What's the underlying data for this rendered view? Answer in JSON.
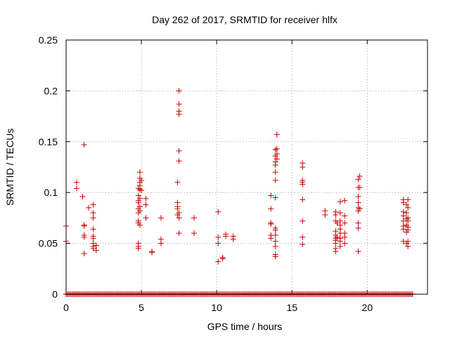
{
  "chart_data": {
    "type": "scatter",
    "title": "Day 262 of 2017, SRMTID for receiver hlfx",
    "xlabel": "GPS time / hours",
    "ylabel": "SRMTID / TECUs",
    "xlim": [
      0,
      24
    ],
    "ylim": [
      0,
      0.25
    ],
    "xticks": [
      0,
      5,
      10,
      15,
      20
    ],
    "xtick_labels": [
      "0",
      "5",
      "10",
      "15",
      "20"
    ],
    "yticks": [
      0,
      0.05,
      0.1,
      0.15,
      0.2,
      0.25
    ],
    "ytick_labels": [
      "0",
      "0.05",
      "0.1",
      "0.15",
      "0.2",
      "0.25"
    ],
    "grid": true,
    "marker": "plus",
    "marker_color": "#cc0000",
    "series": [
      {
        "name": "",
        "points": [
          [
            0.0,
            0.067
          ],
          [
            0.0,
            0.052
          ],
          [
            0.7,
            0.11
          ],
          [
            0.7,
            0.104
          ],
          [
            1.1,
            0.096
          ],
          [
            1.2,
            0.147
          ],
          [
            1.2,
            0.068
          ],
          [
            1.2,
            0.067
          ],
          [
            1.2,
            0.058
          ],
          [
            1.2,
            0.056
          ],
          [
            1.2,
            0.04
          ],
          [
            1.5,
            0.085
          ],
          [
            1.8,
            0.088
          ],
          [
            1.8,
            0.08
          ],
          [
            1.8,
            0.075
          ],
          [
            1.8,
            0.064
          ],
          [
            1.8,
            0.057
          ],
          [
            1.8,
            0.055
          ],
          [
            1.8,
            0.05
          ],
          [
            1.8,
            0.047
          ],
          [
            1.8,
            0.045
          ],
          [
            2.0,
            0.048
          ],
          [
            2.0,
            0.043
          ],
          [
            4.8,
            0.104
          ],
          [
            4.8,
            0.097
          ],
          [
            4.8,
            0.092
          ],
          [
            4.8,
            0.09
          ],
          [
            4.8,
            0.084
          ],
          [
            4.8,
            0.08
          ],
          [
            4.8,
            0.072
          ],
          [
            4.8,
            0.07
          ],
          [
            4.8,
            0.05
          ],
          [
            4.8,
            0.047
          ],
          [
            4.8,
            0.045
          ],
          [
            4.9,
            0.12
          ],
          [
            4.9,
            0.114
          ],
          [
            4.9,
            0.11
          ],
          [
            4.9,
            0.107
          ],
          [
            4.9,
            0.103
          ],
          [
            4.9,
            0.094
          ],
          [
            4.9,
            0.086
          ],
          [
            4.9,
            0.082
          ],
          [
            4.9,
            0.068
          ],
          [
            5.0,
            0.112
          ],
          [
            5.0,
            0.102
          ],
          [
            5.3,
            0.094
          ],
          [
            5.3,
            0.088
          ],
          [
            5.3,
            0.075
          ],
          [
            5.7,
            0.042
          ],
          [
            5.7,
            0.041
          ],
          [
            6.3,
            0.075
          ],
          [
            6.3,
            0.054
          ],
          [
            6.3,
            0.05
          ],
          [
            7.4,
            0.11
          ],
          [
            7.4,
            0.09
          ],
          [
            7.4,
            0.086
          ],
          [
            7.4,
            0.084
          ],
          [
            7.4,
            0.078
          ],
          [
            7.5,
            0.2
          ],
          [
            7.5,
            0.187
          ],
          [
            7.5,
            0.18
          ],
          [
            7.5,
            0.177
          ],
          [
            7.5,
            0.141
          ],
          [
            7.5,
            0.131
          ],
          [
            7.5,
            0.08
          ],
          [
            7.5,
            0.075
          ],
          [
            7.5,
            0.06
          ],
          [
            8.5,
            0.075
          ],
          [
            8.5,
            0.06
          ],
          [
            10.1,
            0.081
          ],
          [
            10.1,
            0.056
          ],
          [
            10.1,
            0.05
          ],
          [
            10.1,
            0.032
          ],
          [
            10.4,
            0.036
          ],
          [
            10.4,
            0.035
          ],
          [
            10.6,
            0.059
          ],
          [
            10.6,
            0.057
          ],
          [
            11.1,
            0.057
          ],
          [
            11.1,
            0.054
          ],
          [
            13.6,
            0.097
          ],
          [
            13.6,
            0.084
          ],
          [
            13.6,
            0.07
          ],
          [
            13.6,
            0.069
          ],
          [
            13.6,
            0.058
          ],
          [
            13.6,
            0.055
          ],
          [
            13.9,
            0.142
          ],
          [
            13.9,
            0.136
          ],
          [
            13.9,
            0.13
          ],
          [
            13.9,
            0.127
          ],
          [
            13.9,
            0.12
          ],
          [
            13.9,
            0.112
          ],
          [
            13.9,
            0.095
          ],
          [
            13.9,
            0.065
          ],
          [
            13.9,
            0.063
          ],
          [
            13.9,
            0.058
          ],
          [
            13.9,
            0.052
          ],
          [
            13.9,
            0.047
          ],
          [
            13.9,
            0.039
          ],
          [
            13.9,
            0.037
          ],
          [
            14.0,
            0.157
          ],
          [
            14.0,
            0.143
          ],
          [
            14.0,
            0.138
          ],
          [
            14.0,
            0.133
          ],
          [
            15.7,
            0.129
          ],
          [
            15.7,
            0.125
          ],
          [
            15.7,
            0.112
          ],
          [
            15.7,
            0.11
          ],
          [
            15.7,
            0.108
          ],
          [
            15.7,
            0.093
          ],
          [
            15.7,
            0.072
          ],
          [
            15.7,
            0.056
          ],
          [
            15.7,
            0.049
          ],
          [
            17.2,
            0.082
          ],
          [
            17.2,
            0.078
          ],
          [
            17.9,
            0.081
          ],
          [
            17.9,
            0.078
          ],
          [
            17.9,
            0.072
          ],
          [
            17.9,
            0.062
          ],
          [
            17.9,
            0.058
          ],
          [
            17.9,
            0.055
          ],
          [
            17.9,
            0.053
          ],
          [
            17.9,
            0.05
          ],
          [
            17.9,
            0.045
          ],
          [
            17.9,
            0.042
          ],
          [
            18.0,
            0.07
          ],
          [
            18.0,
            0.056
          ],
          [
            18.2,
            0.091
          ],
          [
            18.2,
            0.08
          ],
          [
            18.2,
            0.072
          ],
          [
            18.2,
            0.068
          ],
          [
            18.2,
            0.064
          ],
          [
            18.2,
            0.06
          ],
          [
            18.2,
            0.055
          ],
          [
            18.2,
            0.052
          ],
          [
            18.2,
            0.047
          ],
          [
            18.5,
            0.092
          ],
          [
            18.5,
            0.077
          ],
          [
            18.5,
            0.07
          ],
          [
            18.5,
            0.06
          ],
          [
            18.5,
            0.056
          ],
          [
            18.5,
            0.05
          ],
          [
            19.4,
            0.113
          ],
          [
            19.4,
            0.105
          ],
          [
            19.4,
            0.096
          ],
          [
            19.4,
            0.09
          ],
          [
            19.4,
            0.085
          ],
          [
            19.4,
            0.082
          ],
          [
            19.4,
            0.07
          ],
          [
            19.4,
            0.065
          ],
          [
            19.4,
            0.042
          ],
          [
            19.5,
            0.116
          ],
          [
            19.5,
            0.105
          ],
          [
            19.5,
            0.084
          ],
          [
            22.4,
            0.093
          ],
          [
            22.4,
            0.09
          ],
          [
            22.4,
            0.081
          ],
          [
            22.4,
            0.077
          ],
          [
            22.4,
            0.072
          ],
          [
            22.4,
            0.067
          ],
          [
            22.4,
            0.064
          ],
          [
            22.4,
            0.052
          ],
          [
            22.6,
            0.088
          ],
          [
            22.6,
            0.08
          ],
          [
            22.6,
            0.074
          ],
          [
            22.6,
            0.068
          ],
          [
            22.6,
            0.061
          ],
          [
            22.6,
            0.05
          ],
          [
            22.7,
            0.093
          ],
          [
            22.7,
            0.085
          ],
          [
            22.7,
            0.075
          ],
          [
            22.7,
            0.072
          ],
          [
            22.7,
            0.066
          ],
          [
            22.7,
            0.063
          ],
          [
            22.7,
            0.052
          ],
          [
            22.7,
            0.047
          ]
        ],
        "zero_band": [
          [
            0.0,
            23.0
          ]
        ]
      }
    ]
  }
}
